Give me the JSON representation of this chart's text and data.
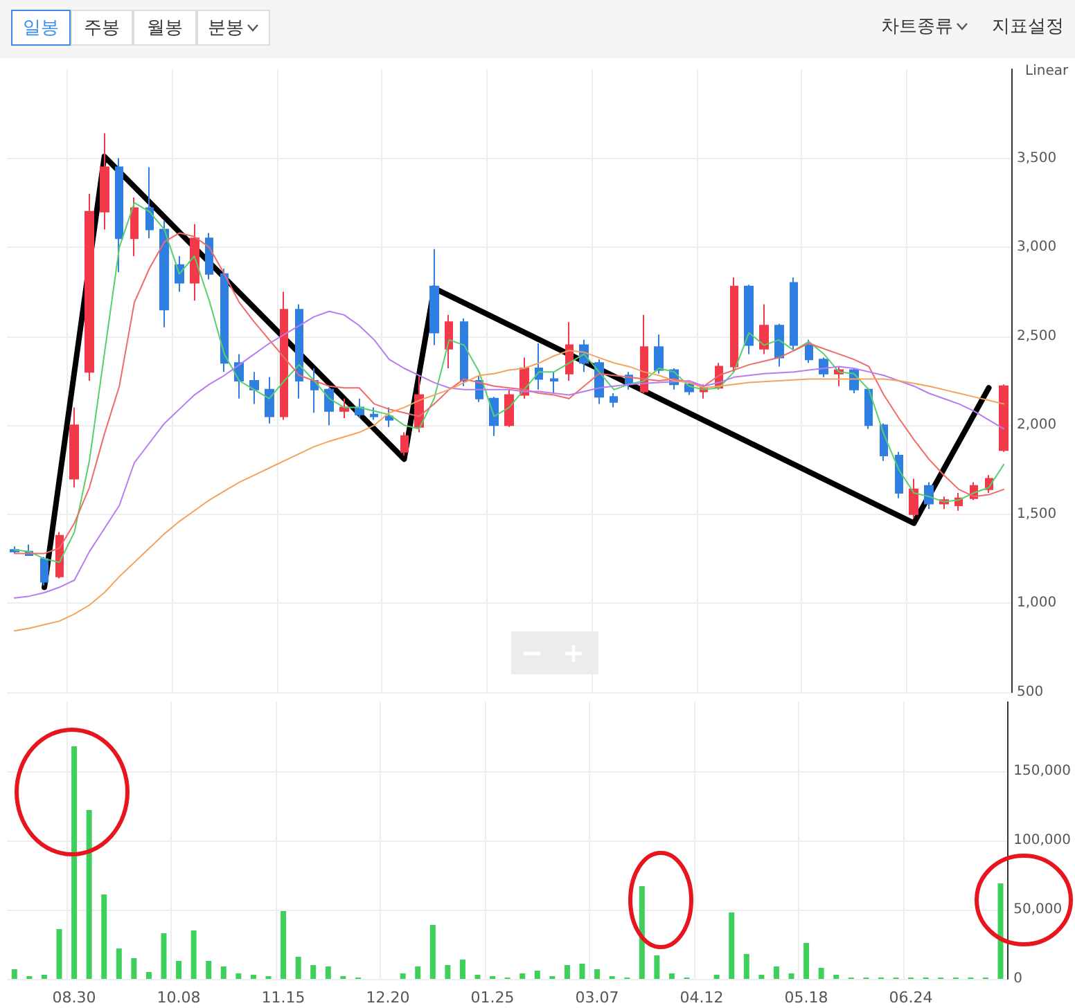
{
  "chart_data": [
    {
      "type": "candlestick",
      "categories": [
        null,
        null,
        null,
        null,
        "08.30",
        null,
        null,
        null,
        null,
        null,
        null,
        "10.08",
        null,
        null,
        null,
        null,
        null,
        null,
        "11.15",
        null,
        null,
        null,
        null,
        null,
        null,
        "12.20",
        null,
        null,
        null,
        null,
        null,
        null,
        "01.25",
        null,
        null,
        null,
        null,
        null,
        null,
        "03.07",
        null,
        null,
        null,
        null,
        null,
        null,
        "04.12",
        null,
        null,
        null,
        null,
        null,
        null,
        "05.18",
        null,
        null,
        null,
        null,
        null,
        null,
        "06.24",
        null,
        null,
        null,
        null,
        null,
        null
      ],
      "series": [
        {
          "type": "candlestick",
          "ohlc": [
            [
              1300,
              1320,
              1280,
              1290
            ],
            [
              1290,
              1330,
              1270,
              1270
            ],
            [
              1250,
              1260,
              1100,
              1120
            ],
            [
              1150,
              1400,
              1140,
              1380
            ],
            [
              1700,
              2100,
              1650,
              2000
            ],
            [
              2300,
              3300,
              2250,
              3200
            ],
            [
              3200,
              3640,
              3100,
              3450
            ],
            [
              3450,
              3500,
              2860,
              3050
            ],
            [
              3050,
              3280,
              2950,
              3220
            ],
            [
              3220,
              3450,
              3050,
              3100
            ],
            [
              3100,
              3150,
              2550,
              2650
            ],
            [
              2900,
              2950,
              2750,
              2800
            ],
            [
              2800,
              3130,
              2700,
              3050
            ],
            [
              3050,
              3080,
              2820,
              2850
            ],
            [
              2850,
              2880,
              2300,
              2350
            ],
            [
              2350,
              2400,
              2150,
              2250
            ],
            [
              2250,
              2300,
              2120,
              2200
            ],
            [
              2200,
              2270,
              2010,
              2050
            ],
            [
              2050,
              2750,
              2030,
              2650
            ],
            [
              2650,
              2680,
              2150,
              2250
            ],
            [
              2250,
              2320,
              2070,
              2200
            ],
            [
              2200,
              2210,
              2000,
              2080
            ],
            [
              2080,
              2150,
              2040,
              2100
            ],
            [
              2100,
              2150,
              2040,
              2060
            ],
            [
              2060,
              2100,
              2030,
              2050
            ],
            [
              2050,
              2100,
              1990,
              2030
            ],
            [
              1850,
              1960,
              1830,
              1940
            ],
            [
              1990,
              2280,
              1960,
              2170
            ],
            [
              2780,
              2990,
              2450,
              2520
            ],
            [
              2430,
              2620,
              2320,
              2580
            ],
            [
              2580,
              2600,
              2220,
              2250
            ],
            [
              2250,
              2280,
              2130,
              2150
            ],
            [
              2150,
              2160,
              1940,
              2000
            ],
            [
              2000,
              2200,
              1990,
              2170
            ],
            [
              2170,
              2380,
              2150,
              2320
            ],
            [
              2320,
              2460,
              2200,
              2260
            ],
            [
              2260,
              2300,
              2180,
              2250
            ],
            [
              2290,
              2580,
              2250,
              2450
            ],
            [
              2450,
              2480,
              2300,
              2350
            ],
            [
              2350,
              2370,
              2120,
              2160
            ],
            [
              2160,
              2180,
              2100,
              2130
            ],
            [
              2280,
              2300,
              2200,
              2230
            ],
            [
              2190,
              2620,
              2180,
              2440
            ],
            [
              2440,
              2510,
              2290,
              2310
            ],
            [
              2310,
              2320,
              2200,
              2230
            ],
            [
              2230,
              2240,
              2170,
              2190
            ],
            [
              2190,
              2230,
              2150,
              2210
            ],
            [
              2210,
              2350,
              2200,
              2330
            ],
            [
              2330,
              2830,
              2300,
              2780
            ],
            [
              2780,
              2790,
              2400,
              2450
            ],
            [
              2430,
              2680,
              2400,
              2560
            ],
            [
              2560,
              2570,
              2330,
              2380
            ],
            [
              2800,
              2830,
              2420,
              2450
            ],
            [
              2450,
              2480,
              2350,
              2370
            ],
            [
              2370,
              2380,
              2270,
              2290
            ],
            [
              2290,
              2330,
              2220,
              2310
            ],
            [
              2310,
              2320,
              2180,
              2200
            ],
            [
              2200,
              2210,
              1980,
              2000
            ],
            [
              2000,
              2010,
              1800,
              1830
            ],
            [
              1830,
              1850,
              1590,
              1620
            ],
            [
              1500,
              1700,
              1480,
              1640
            ],
            [
              1660,
              1680,
              1530,
              1560
            ],
            [
              1560,
              1600,
              1530,
              1580
            ],
            [
              1550,
              1620,
              1520,
              1590
            ],
            [
              1590,
              1680,
              1580,
              1660
            ],
            [
              1640,
              1720,
              1620,
              1700
            ],
            [
              1860,
              2230,
              1850,
              2220
            ]
          ],
          "colors": [
            "#2f7fe0",
            "#2f7fe0",
            "#2f7fe0",
            "#f2394a",
            "#f2394a",
            "#f2394a",
            "#f2394a",
            "#2f7fe0",
            "#f2394a",
            "#2f7fe0",
            "#2f7fe0",
            "#2f7fe0",
            "#f2394a",
            "#2f7fe0",
            "#2f7fe0",
            "#2f7fe0",
            "#2f7fe0",
            "#2f7fe0",
            "#f2394a",
            "#2f7fe0",
            "#2f7fe0",
            "#2f7fe0",
            "#f2394a",
            "#2f7fe0",
            "#2f7fe0",
            "#2f7fe0",
            "#f2394a",
            "#f2394a",
            "#2f7fe0",
            "#f2394a",
            "#2f7fe0",
            "#2f7fe0",
            "#2f7fe0",
            "#f2394a",
            "#f2394a",
            "#2f7fe0",
            "#2f7fe0",
            "#f2394a",
            "#2f7fe0",
            "#2f7fe0",
            "#2f7fe0",
            "#2f7fe0",
            "#f2394a",
            "#2f7fe0",
            "#2f7fe0",
            "#2f7fe0",
            "#f2394a",
            "#f2394a",
            "#f2394a",
            "#2f7fe0",
            "#f2394a",
            "#2f7fe0",
            "#2f7fe0",
            "#2f7fe0",
            "#2f7fe0",
            "#f2394a",
            "#2f7fe0",
            "#2f7fe0",
            "#2f7fe0",
            "#2f7fe0",
            "#f2394a",
            "#2f7fe0",
            "#f2394a",
            "#f2394a",
            "#f2394a",
            "#f2394a",
            "#f2394a"
          ]
        },
        {
          "type": "line",
          "color": "#55d06c",
          "values": [
            1300,
            1290,
            1250,
            1230,
            1400,
            1800,
            2400,
            3000,
            3250,
            3200,
            3100,
            2850,
            2950,
            2700,
            2400,
            2250,
            2200,
            2150,
            2250,
            2340,
            2250,
            2150,
            2100,
            2100,
            2080,
            2060,
            2000,
            1980,
            2150,
            2480,
            2450,
            2300,
            2050,
            2100,
            2200,
            2300,
            2300,
            2350,
            2400,
            2300,
            2200,
            2230,
            2250,
            2320,
            2300,
            2220,
            2200,
            2210,
            2300,
            2520,
            2450,
            2480,
            2420,
            2470,
            2400,
            2300,
            2290,
            2200,
            1950,
            1750,
            1620,
            1600,
            1570,
            1580,
            1620,
            1650,
            1780
          ]
        },
        {
          "type": "line",
          "color": "#f06a6a",
          "values": [
            1280,
            1280,
            1280,
            1310,
            1450,
            1650,
            1950,
            2220,
            2690,
            2880,
            3030,
            3080,
            3060,
            3000,
            2850,
            2690,
            2580,
            2480,
            2380,
            2280,
            2250,
            2220,
            2210,
            2210,
            2120,
            2090,
            2070,
            2050,
            2120,
            2200,
            2260,
            2240,
            2220,
            2210,
            2200,
            2180,
            2170,
            2150,
            2220,
            2290,
            2280,
            2270,
            2260,
            2250,
            2260,
            2240,
            2220,
            2280,
            2310,
            2340,
            2360,
            2380,
            2420,
            2460,
            2430,
            2400,
            2370,
            2330,
            2170,
            2040,
            1920,
            1810,
            1720,
            1640,
            1600,
            1610,
            1640
          ]
        },
        {
          "type": "line",
          "color": "#b77cf0",
          "values": [
            1030,
            1040,
            1060,
            1090,
            1130,
            1290,
            1420,
            1550,
            1790,
            1900,
            2010,
            2090,
            2170,
            2230,
            2280,
            2340,
            2400,
            2460,
            2510,
            2560,
            2610,
            2640,
            2620,
            2560,
            2480,
            2370,
            2320,
            2280,
            2240,
            2210,
            2200,
            2200,
            2200,
            2200,
            2190,
            2190,
            2180,
            2170,
            2190,
            2210,
            2220,
            2230,
            2235,
            2240,
            2245,
            2250,
            2220,
            2240,
            2270,
            2280,
            2290,
            2295,
            2300,
            2310,
            2320,
            2330,
            2320,
            2300,
            2280,
            2250,
            2220,
            2180,
            2150,
            2120,
            2080,
            2030,
            1980
          ]
        },
        {
          "type": "line",
          "color": "#f4a35c",
          "values": [
            845,
            860,
            880,
            900,
            940,
            990,
            1060,
            1150,
            1230,
            1310,
            1390,
            1460,
            1520,
            1580,
            1630,
            1680,
            1720,
            1760,
            1800,
            1840,
            1880,
            1910,
            1935,
            1960,
            2000,
            2070,
            2100,
            2140,
            2170,
            2200,
            2240,
            2280,
            2290,
            2310,
            2320,
            2350,
            2390,
            2420,
            2410,
            2380,
            2350,
            2330,
            2300,
            2280,
            2250,
            2240,
            2210,
            2220,
            2230,
            2240,
            2245,
            2250,
            2255,
            2260,
            2260,
            2260,
            2260,
            2260,
            2260,
            2250,
            2235,
            2220,
            2200,
            2180,
            2160,
            2140,
            2120
          ]
        },
        {
          "type": "line",
          "color": "#000000",
          "values": [
            null,
            null,
            1090,
            null,
            null,
            null,
            3510,
            null,
            null,
            null,
            null,
            null,
            null,
            null,
            null,
            null,
            null,
            null,
            null,
            null,
            null,
            null,
            null,
            null,
            null,
            null,
            1810,
            null,
            2770,
            null,
            null,
            null,
            null,
            null,
            null,
            null,
            null,
            null,
            null,
            null,
            null,
            null,
            null,
            null,
            null,
            null,
            null,
            null,
            null,
            null,
            null,
            null,
            null,
            null,
            null,
            null,
            null,
            null,
            null,
            null,
            1450,
            null,
            null,
            null,
            null,
            2210,
            null
          ]
        }
      ],
      "ylim": [
        500,
        4000
      ],
      "yticks": [
        500,
        {
          "value": 1000,
          "label": "1,000"
        },
        {
          "value": 1500,
          "label": "1,500"
        },
        {
          "value": 2000,
          "label": "2,000"
        },
        {
          "value": 2500,
          "label": "2,500"
        },
        {
          "value": 3000,
          "label": "3,000"
        },
        {
          "value": 3500,
          "label": "3,500"
        }
      ],
      "grid": true,
      "tick_labels": "y",
      "marker": "none",
      "line_style": "solid",
      "annotations": [
        "일봉",
        "주봉",
        "월봉",
        "분봉",
        "차트종류",
        "지표설정",
        "Linear"
      ]
    },
    {
      "type": "bar",
      "categories": [
        null,
        null,
        null,
        null,
        "08.30",
        null,
        null,
        null,
        null,
        null,
        null,
        "10.08",
        null,
        null,
        null,
        null,
        null,
        null,
        "11.15",
        null,
        null,
        null,
        null,
        null,
        null,
        "12.20",
        null,
        null,
        null,
        null,
        null,
        null,
        "01.25",
        null,
        null,
        null,
        null,
        null,
        null,
        "03.07",
        null,
        null,
        null,
        null,
        null,
        null,
        "04.12",
        null,
        null,
        null,
        null,
        null,
        null,
        "05.18",
        null,
        null,
        null,
        null,
        null,
        null,
        "06.24",
        null,
        null,
        null,
        null,
        null,
        null
      ],
      "values": [
        7000,
        2000,
        3000,
        36000,
        168000,
        122000,
        61000,
        22000,
        15000,
        5000,
        33000,
        13000,
        35000,
        13000,
        9000,
        4000,
        3000,
        2000,
        49000,
        16000,
        10000,
        9000,
        2000,
        1000,
        0,
        0,
        4000,
        9000,
        39000,
        10000,
        14000,
        3000,
        2000,
        1000,
        4000,
        6000,
        2000,
        10000,
        11000,
        7000,
        2000,
        1000,
        67000,
        17000,
        4000,
        1000,
        0,
        3000,
        48000,
        18000,
        3000,
        9000,
        4000,
        26000,
        8000,
        3000,
        1000,
        1000,
        1000,
        1000,
        1000,
        1000,
        1000,
        1000,
        1000,
        1000,
        69000
      ],
      "color": "#3ecf5c",
      "ylim": [
        0,
        200000
      ],
      "yticks": [
        0,
        {
          "value": 50000,
          "label": "50,000"
        },
        {
          "value": 100000,
          "label": "100,000"
        },
        {
          "value": 150000,
          "label": "150,000"
        }
      ],
      "grid": true
    }
  ]
}
